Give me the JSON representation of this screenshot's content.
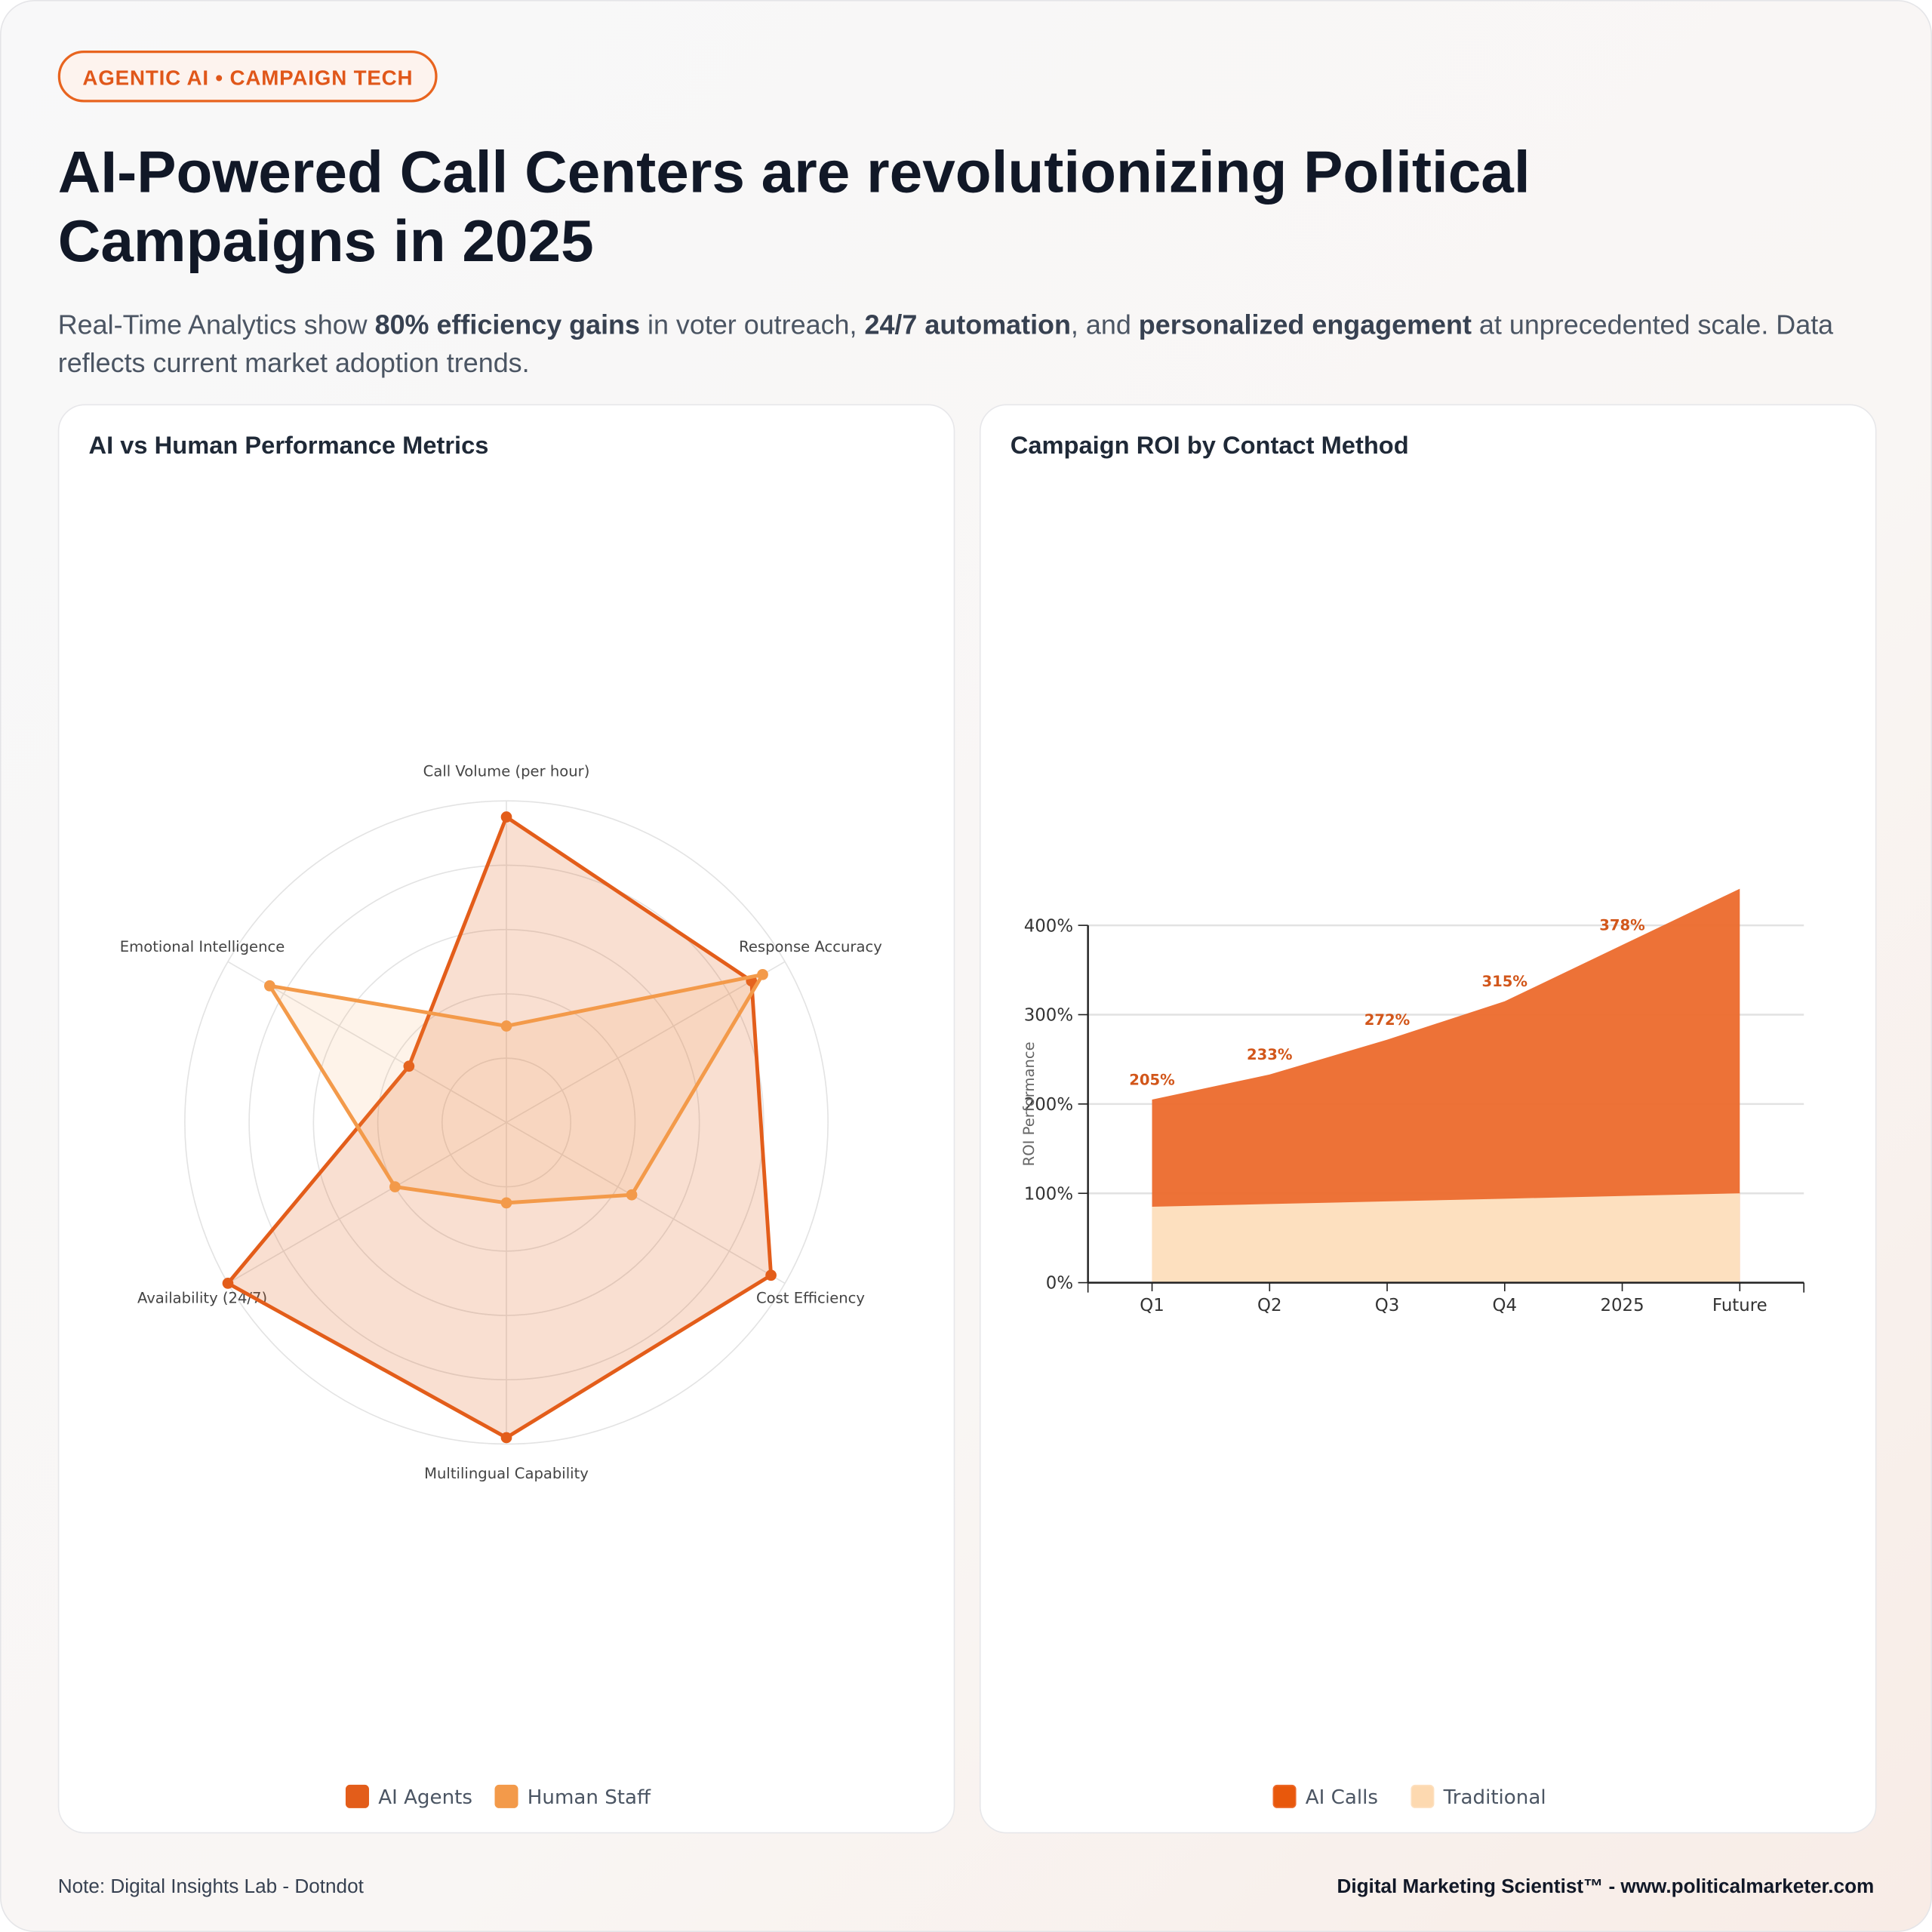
{
  "header": {
    "tag": "AGENTIC AI • CAMPAIGN TECH",
    "title": "AI-Powered Call Centers are revolutionizing Political Campaigns in 2025",
    "subtitle": [
      "Real-Time Analytics show ",
      "80% efficiency gains",
      " in voter outreach, ",
      "24/7 automation",
      ", and ",
      "personalized engagement",
      " at unprecedented scale. Data reflects current market adoption trends."
    ]
  },
  "chart_data": [
    {
      "type": "radar",
      "title": "AI vs Human Performance Metrics",
      "categories": [
        "Call Volume (per hour)",
        "Response Accuracy",
        "Cost Efficiency",
        "Multilingual Capability",
        "Availability (24/7)",
        "Emotional Intelligence"
      ],
      "rlim": [
        0,
        100
      ],
      "rticks": [
        20,
        40,
        60,
        80,
        100
      ],
      "series": [
        {
          "name": "AI Agents",
          "color": "#e35d1a",
          "values": [
            95,
            88,
            95,
            98,
            100,
            35
          ]
        },
        {
          "name": "Human Staff",
          "color": "#f39a4a",
          "values": [
            30,
            92,
            45,
            25,
            40,
            85
          ]
        }
      ]
    },
    {
      "type": "area",
      "title": "Campaign ROI by Contact Method",
      "y_label": "ROI Performance",
      "categories": [
        "Q1",
        "Q2",
        "Q3",
        "Q4",
        "2025",
        "Future"
      ],
      "ylim": [
        0,
        400
      ],
      "yticks": [
        {
          "value": 0,
          "label": "0%"
        },
        {
          "value": 100,
          "label": "100%"
        },
        {
          "value": 200,
          "label": "200%"
        },
        {
          "value": 300,
          "label": "300%"
        },
        {
          "value": 400,
          "label": "400%"
        }
      ],
      "grid": true,
      "series": [
        {
          "name": "AI Calls",
          "color": "#ec6a2c",
          "legend_color": "#e8580c",
          "values": [
            205,
            233,
            272,
            315,
            378,
            441
          ],
          "value_labels": [
            "205%",
            "233%",
            "272%",
            "315%",
            "378%",
            null
          ]
        },
        {
          "name": "Traditional",
          "color": "#fde0bf",
          "legend_color": "#fdd9b0",
          "values": [
            85,
            88,
            91,
            94,
            97,
            100
          ]
        }
      ]
    }
  ],
  "footer": {
    "note": "Note: Digital Insights Lab - Dotndot",
    "credit": "Digital Marketing Scientist™ - www.politicalmarketer.com"
  }
}
